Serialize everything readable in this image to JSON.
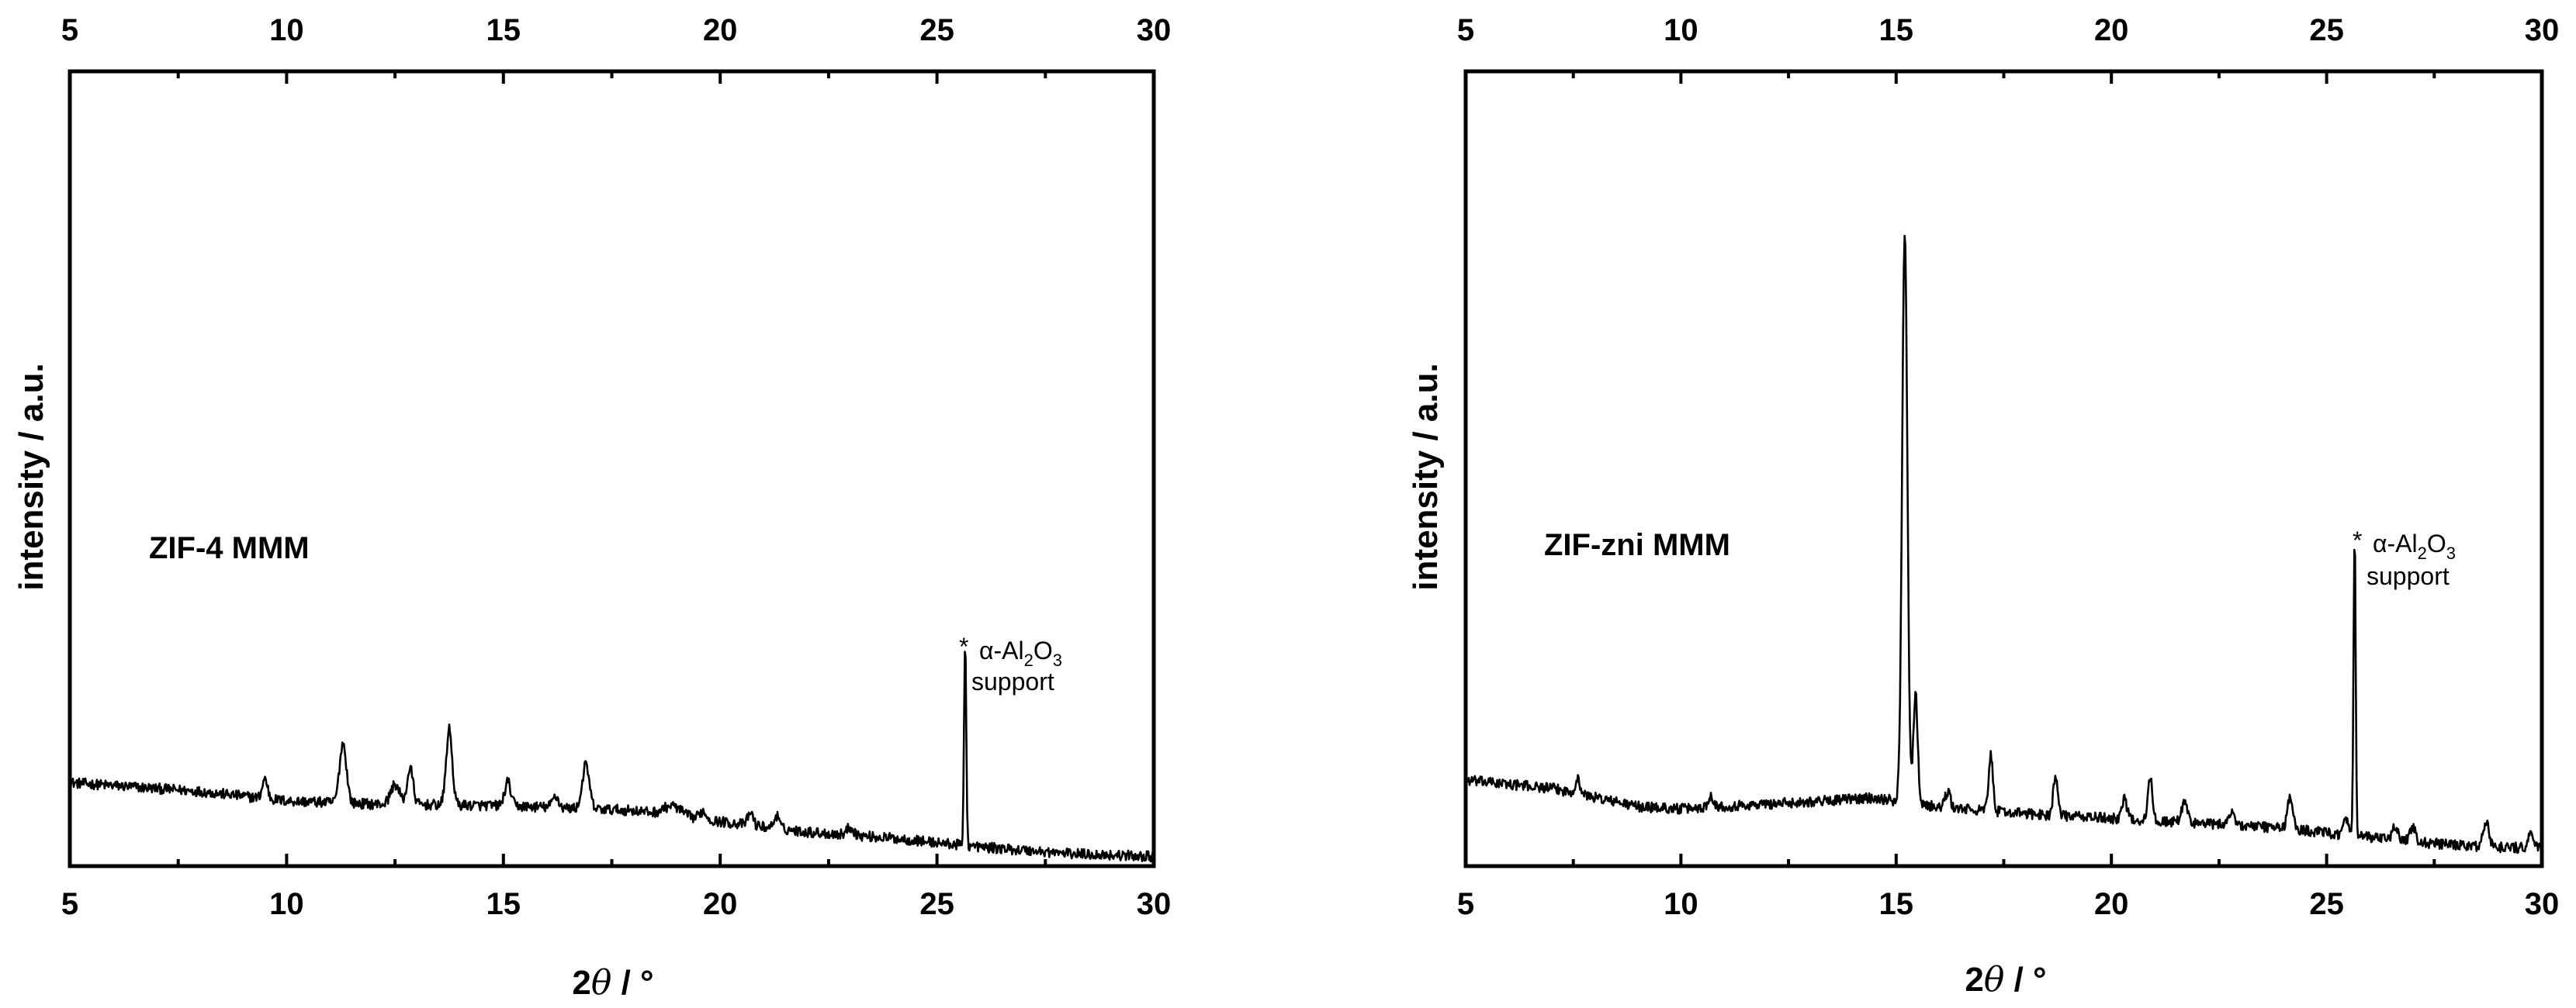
{
  "chart_data": [
    {
      "type": "line",
      "xlabel_main": "2",
      "xlabel_theta": "θ",
      "xlabel_unit": " / °",
      "ylabel": "intensity / a.u.",
      "xlim": [
        5,
        30
      ],
      "ylim": [
        0,
        100
      ],
      "x_ticks": [
        5,
        10,
        15,
        20,
        25,
        30
      ],
      "x_tick_labels": [
        "5",
        "10",
        "15",
        "20",
        "25",
        "30"
      ],
      "top_tick_labels": [
        "5",
        "10",
        "15",
        "20",
        "25",
        "30"
      ],
      "sample_label": "ZIF-4 MMM",
      "annotation": {
        "star": "*",
        "line1_pre": "α-Al",
        "sub1": "2",
        "line1_mid": "O",
        "sub2": "3",
        "line2": "support",
        "x": 25.6,
        "y": 28
      },
      "series": [
        {
          "name": "ZIF-4 MMM",
          "baseline": [
            [
              5,
              10.5
            ],
            [
              8,
              9.4
            ],
            [
              10,
              8.2
            ],
            [
              12,
              7.8
            ],
            [
              15,
              7.6
            ],
            [
              18,
              7.0
            ],
            [
              20,
              5.6
            ],
            [
              22,
              4.3
            ],
            [
              24,
              3.5
            ],
            [
              26,
              2.4
            ],
            [
              28,
              1.6
            ],
            [
              30,
              1.2
            ]
          ],
          "peaks": [
            [
              9.5,
              2.5,
              0.06
            ],
            [
              11.3,
              7.5,
              0.08
            ],
            [
              12.5,
              2.5,
              0.1
            ],
            [
              12.85,
              4.5,
              0.07
            ],
            [
              13.75,
              9.5,
              0.07
            ],
            [
              15.1,
              3.0,
              0.07
            ],
            [
              16.2,
              1.5,
              0.07
            ],
            [
              16.9,
              5.5,
              0.08
            ],
            [
              18.9,
              1.2,
              0.2
            ],
            [
              19.6,
              1.0,
              0.08
            ],
            [
              20.7,
              1.6,
              0.06
            ],
            [
              21.3,
              1.6,
              0.06
            ],
            [
              23.0,
              1.0,
              0.08
            ],
            [
              25.65,
              26.0,
              0.025
            ]
          ]
        }
      ]
    },
    {
      "type": "line",
      "xlabel_main": "2",
      "xlabel_theta": "θ",
      "xlabel_unit": " / °",
      "ylabel": "intensity / a.u.",
      "xlim": [
        5,
        30
      ],
      "ylim": [
        0,
        100
      ],
      "x_ticks": [
        5,
        10,
        15,
        20,
        25,
        30
      ],
      "x_tick_labels": [
        "5",
        "10",
        "15",
        "20",
        "25",
        "30"
      ],
      "top_tick_labels": [
        "5",
        "10",
        "15",
        "20",
        "25",
        "30"
      ],
      "sample_label": "ZIF-zni MMM",
      "annotation": {
        "star": "*",
        "line1_pre": "α-Al",
        "sub1": "2",
        "line1_mid": "O",
        "sub2": "3",
        "line2": "support",
        "x": 25.6,
        "y": 42
      },
      "series": [
        {
          "name": "ZIF-zni MMM",
          "baseline": [
            [
              5,
              10.8
            ],
            [
              7,
              9.8
            ],
            [
              9,
              7.5
            ],
            [
              10,
              7.2
            ],
            [
              12,
              7.8
            ],
            [
              14.5,
              8.6
            ],
            [
              16,
              7.4
            ],
            [
              18,
              6.6
            ],
            [
              20,
              6.0
            ],
            [
              22,
              5.4
            ],
            [
              24,
              4.8
            ],
            [
              26,
              3.6
            ],
            [
              28,
              2.6
            ],
            [
              30,
              2.2
            ]
          ],
          "peaks": [
            [
              7.6,
              1.8,
              0.06
            ],
            [
              10.7,
              1.5,
              0.06
            ],
            [
              15.2,
              72.0,
              0.06
            ],
            [
              15.45,
              14.0,
              0.05
            ],
            [
              16.2,
              2.0,
              0.06
            ],
            [
              17.2,
              7.0,
              0.05
            ],
            [
              18.7,
              5.0,
              0.05
            ],
            [
              20.3,
              2.5,
              0.06
            ],
            [
              20.9,
              5.5,
              0.05
            ],
            [
              21.7,
              2.5,
              0.07
            ],
            [
              22.8,
              2.0,
              0.06
            ],
            [
              24.15,
              4.0,
              0.06
            ],
            [
              25.45,
              2.0,
              0.05
            ],
            [
              25.65,
              38.0,
              0.025
            ],
            [
              26.6,
              1.8,
              0.06
            ],
            [
              27.0,
              1.8,
              0.06
            ],
            [
              28.7,
              3.0,
              0.07
            ],
            [
              29.75,
              2.0,
              0.06
            ]
          ]
        }
      ]
    }
  ]
}
